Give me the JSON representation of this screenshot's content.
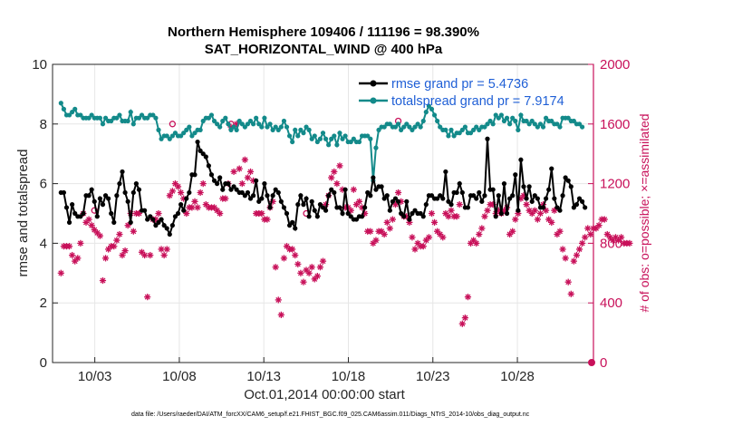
{
  "chart_data": {
    "type": "line",
    "title": "Northern Hemisphere 109406 / 111196 = 98.390%",
    "subtitle": "SAT_HORIZONTAL_WIND @ 400 hPa",
    "xlabel": "Oct.01,2014 00:00:00 start",
    "ylabel": "rmse and totalspread",
    "ylabel_right": "# of obs: o=possible; ×=assimilated",
    "footnote": "data file: /Users/raeder/DAI/ATM_forcXX/CAM6_setup/f.e21.FHIST_BGC.f09_025.CAM6assim.011/Diags_NTrS_2014-10/obs_diag_output.nc",
    "xlim": [
      0.5,
      32.5
    ],
    "x_ticks": [
      3,
      8,
      13,
      18,
      23,
      28
    ],
    "x_tick_labels": [
      "10/03",
      "10/08",
      "10/13",
      "10/18",
      "10/23",
      "10/28"
    ],
    "ylim": [
      0,
      10
    ],
    "y_ticks": [
      0,
      2,
      4,
      6,
      8,
      10
    ],
    "y2lim": [
      0,
      2000
    ],
    "y2_ticks": [
      0,
      400,
      800,
      1200,
      1600,
      2000
    ],
    "grid": true,
    "legend_position": "top-right",
    "colors": {
      "rmse": "#000000",
      "spread": "#138a8a",
      "obs": "#c8115a",
      "legend_text": "#1f5fd6"
    },
    "series": [
      {
        "name": "rmse grand pr = 5.4736",
        "axis": "left",
        "marker": "dot",
        "values": [
          5.7,
          5.7,
          5.2,
          4.7,
          5.3,
          5.0,
          4.9,
          4.9,
          5.0,
          5.6,
          5.6,
          5.8,
          5.4,
          4.9,
          5.5,
          5.3,
          5.6,
          5.5,
          5.0,
          4.7,
          5.6,
          6.0,
          6.4,
          5.7,
          5.4,
          4.7,
          5.7,
          6.0,
          5.8,
          5.1,
          5.1,
          4.8,
          4.9,
          4.8,
          4.6,
          4.7,
          4.8,
          4.6,
          4.5,
          4.3,
          4.6,
          4.9,
          5.0,
          5.3,
          5.1,
          5.5,
          5.7,
          6.3,
          6.3,
          7.4,
          7.1,
          7.0,
          6.9,
          6.6,
          6.3,
          6.1,
          6.0,
          6.2,
          5.8,
          6.0,
          6.0,
          5.8,
          5.9,
          5.8,
          5.7,
          5.7,
          5.6,
          5.7,
          5.5,
          5.6,
          6.1,
          5.4,
          5.5,
          6.0,
          5.6,
          5.2,
          5.6,
          5.8,
          5.7,
          5.4,
          5.2,
          5.0,
          4.6,
          4.7,
          4.5,
          5.3,
          5.6,
          5.3,
          5.5,
          4.9,
          5.4,
          5.1,
          4.9,
          5.3,
          5.2,
          5.1,
          5.6,
          5.8,
          5.7,
          5.2,
          5.2,
          5.0,
          5.8,
          5.0,
          4.9,
          4.8,
          4.8,
          4.9,
          4.9,
          5.2,
          5.7,
          5.6,
          6.2,
          5.8,
          5.9,
          5.9,
          5.5,
          5.6,
          5.1,
          5.4,
          5.5,
          5.4,
          5.0,
          4.9,
          5.4,
          4.8,
          5.0,
          5.1,
          5.0,
          5.0,
          4.9,
          5.3,
          5.6,
          5.6,
          5.5,
          5.5,
          5.6,
          5.5,
          6.4,
          5.4,
          5.3,
          5.7,
          5.7,
          6.0,
          5.7,
          5.2,
          5.2,
          5.6,
          5.6,
          5.5,
          5.7,
          5.4,
          5.6,
          7.5,
          5.8,
          5.8,
          4.9,
          5.6,
          5.0,
          6.0,
          5.0,
          5.5,
          5.6,
          6.3,
          5.1,
          6.8,
          5.9,
          5.5,
          5.9,
          5.4,
          5.6,
          5.5,
          5.2,
          5.2,
          5.5,
          5.8,
          6.5,
          5.5,
          5.2,
          5.1,
          5.6,
          6.2,
          6.1,
          5.9,
          5.2,
          5.3,
          5.5,
          5.4,
          5.2
        ]
      },
      {
        "name": "totalspread grand pr = 7.9174",
        "axis": "left",
        "marker": "dot",
        "values": [
          8.7,
          8.5,
          8.3,
          8.3,
          8.4,
          8.5,
          8.3,
          8.3,
          8.2,
          8.2,
          8.2,
          8.3,
          8.2,
          8.2,
          8.2,
          8.0,
          8.2,
          8.1,
          8.1,
          8.2,
          8.2,
          8.3,
          8.1,
          8.1,
          8.1,
          8.4,
          8.0,
          8.2,
          8.2,
          8.3,
          8.2,
          8.2,
          8.3,
          8.3,
          8.2,
          7.8,
          7.5,
          7.6,
          7.6,
          7.5,
          7.6,
          7.7,
          7.6,
          7.6,
          7.7,
          7.8,
          7.9,
          7.6,
          7.7,
          7.8,
          7.8,
          8.1,
          8.2,
          8.2,
          8.3,
          8.1,
          8.0,
          7.9,
          8.1,
          8.2,
          8.0,
          7.8,
          7.9,
          7.8,
          8.1,
          8.0,
          7.9,
          8.0,
          8.1,
          8.0,
          8.2,
          8.0,
          7.9,
          8.2,
          7.9,
          8.0,
          7.8,
          7.9,
          7.8,
          7.9,
          8.1,
          7.9,
          7.6,
          7.4,
          7.8,
          7.6,
          7.8,
          7.7,
          7.9,
          7.8,
          7.5,
          7.6,
          7.4,
          7.5,
          7.7,
          7.5,
          7.3,
          7.5,
          7.6,
          7.3,
          7.7,
          7.5,
          7.6,
          7.4,
          7.4,
          7.5,
          7.4,
          7.4,
          7.6,
          7.6,
          7.6,
          7.5,
          6.1,
          7.2,
          7.8,
          7.9,
          7.9,
          8.0,
          8.0,
          7.9,
          7.9,
          8.0,
          7.8,
          7.9,
          8.0,
          7.9,
          7.8,
          7.9,
          8.0,
          7.9,
          8.1,
          8.4,
          8.6,
          8.5,
          8.3,
          8.1,
          7.9,
          7.8,
          7.8,
          7.6,
          7.8,
          7.6,
          7.7,
          7.7,
          7.8,
          7.9,
          7.7,
          7.7,
          7.8,
          7.9,
          7.8,
          7.9,
          7.9,
          8.0,
          8.1,
          8.0,
          8.3,
          8.2,
          8.3,
          8.1,
          8.2,
          8.0,
          8.2,
          8.1,
          7.8,
          8.3,
          8.1,
          8.1,
          8.0,
          8.1,
          8.0,
          7.9,
          8.0,
          7.9,
          8.2,
          8.1,
          8.1,
          8.0,
          8.0,
          7.9,
          8.2,
          8.2,
          8.2,
          8.1,
          8.1,
          8.0,
          8.0,
          7.9
        ]
      },
      {
        "name": "# of obs assimilated",
        "axis": "right",
        "marker": "asterisk",
        "values": [
          600,
          780,
          780,
          780,
          720,
          680,
          700,
          800,
          1000,
          940,
          960,
          920,
          890,
          870,
          850,
          550,
          700,
          760,
          780,
          780,
          820,
          860,
          720,
          750,
          920,
          1000,
          880,
          1000,
          1000,
          740,
          720,
          440,
          720,
          960,
          960,
          1000,
          760,
          720,
          760,
          1120,
          1150,
          1200,
          1180,
          1140,
          1100,
          1000,
          1040,
          1040,
          1080,
          1040,
          1140,
          1200,
          1060,
          1040,
          1040,
          1040,
          1020,
          1000,
          1100,
          1100,
          1200,
          1580,
          1280,
          1600,
          1300,
          1200,
          1360,
          1240,
          1280,
          1220,
          1000,
          1000,
          1000,
          960,
          960,
          1040,
          1080,
          640,
          420,
          320,
          700,
          780,
          760,
          760,
          720,
          660,
          600,
          540,
          620,
          600,
          640,
          560,
          580,
          640,
          680,
          1060,
          1120,
          1240,
          1280,
          1200,
          1320,
          1160,
          1040,
          1040,
          1020,
          1160,
          1060,
          1080,
          1040,
          1000,
          880,
          880,
          800,
          820,
          880,
          880,
          860,
          940,
          900,
          960,
          1060,
          1140,
          1080,
          980,
          980,
          940,
          840,
          760,
          800,
          780,
          780,
          820,
          840,
          1000,
          940,
          880,
          860,
          840,
          1000,
          980,
          1020,
          980,
          980,
          1060,
          260,
          300,
          440,
          800,
          820,
          800,
          860,
          900,
          980,
          1020,
          1060,
          1060,
          1000,
          1020,
          1000,
          1020,
          1040,
          860,
          880,
          960,
          1000,
          1100,
          1120,
          1060,
          1020,
          1000,
          1020,
          960,
          1000,
          1060,
          1020,
          960,
          940,
          1020,
          860,
          880,
          760,
          700,
          540,
          460,
          680,
          720,
          760,
          800,
          840,
          900,
          860,
          900,
          900,
          920,
          960,
          960,
          860,
          840,
          820,
          840,
          820,
          840,
          800,
          800,
          800
        ]
      },
      {
        "name": "# of obs possible",
        "axis": "right",
        "marker": "circle",
        "values": [
          null,
          null,
          null,
          null,
          null,
          null,
          null,
          null,
          null,
          null,
          null,
          null,
          1020,
          null,
          null,
          null,
          null,
          null,
          null,
          null,
          null,
          null,
          null,
          null,
          null,
          null,
          null,
          null,
          null,
          null,
          null,
          null,
          null,
          null,
          null,
          null,
          null,
          null,
          null,
          null,
          1600,
          null,
          null,
          null,
          null,
          null,
          null,
          null,
          null,
          null,
          null,
          null,
          null,
          null,
          null,
          null,
          null,
          null,
          null,
          null,
          null,
          1600,
          null,
          null,
          null,
          null,
          null,
          null,
          null,
          null,
          null,
          null,
          null,
          null,
          null,
          null,
          null,
          null,
          null,
          null,
          null,
          null,
          null,
          null,
          null,
          null,
          null,
          null,
          1000,
          null,
          null,
          null,
          null,
          null,
          null,
          null,
          null,
          null,
          null,
          null,
          null,
          null,
          null,
          null,
          null,
          null,
          null,
          null,
          null,
          null,
          null,
          null,
          null,
          null,
          null,
          null,
          null,
          null,
          null,
          null,
          null,
          1620,
          null,
          null,
          null,
          null,
          null,
          null,
          null,
          null,
          null,
          null,
          null,
          null,
          null,
          null,
          null,
          null,
          null,
          null,
          null,
          null,
          null,
          null,
          null,
          null,
          null,
          null,
          null,
          null,
          null,
          null,
          null,
          null,
          null,
          null,
          null,
          null,
          null,
          null,
          null,
          null,
          null,
          null,
          null,
          null,
          null,
          null,
          null,
          null,
          null,
          null,
          null,
          null,
          null,
          null,
          null,
          null,
          null,
          null,
          null,
          null,
          null,
          null,
          null,
          null,
          null,
          null,
          null,
          null,
          null,
          null,
          null,
          null,
          null,
          null,
          null,
          null,
          null,
          null,
          null,
          null,
          null,
          null
        ]
      },
      {
        "name": "# of obs possible (end)",
        "axis": "right",
        "marker": "circle",
        "values": [
          0
        ]
      }
    ]
  }
}
